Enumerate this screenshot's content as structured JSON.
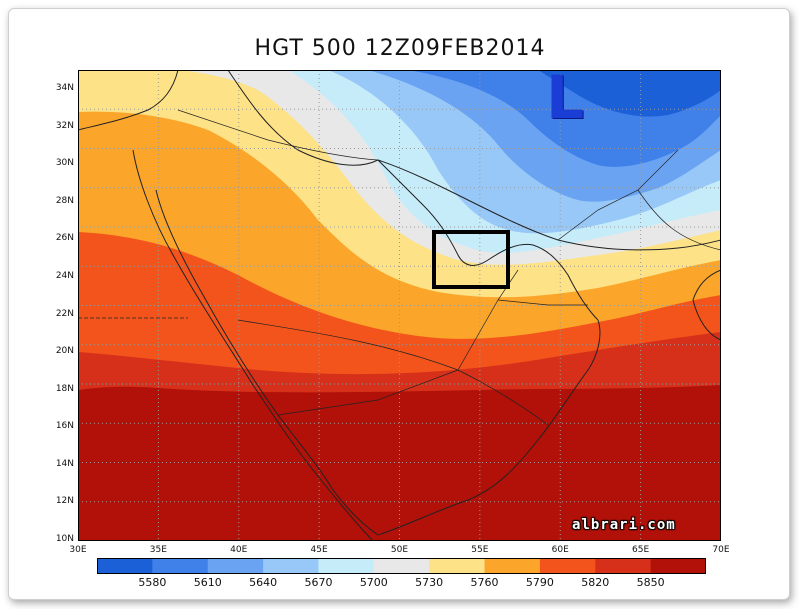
{
  "title": "HGT 500 12Z09FEB2014",
  "low_marker": "L",
  "watermark": "albrari.com",
  "lat_labels": [
    "34N",
    "32N",
    "30N",
    "28N",
    "26N",
    "24N",
    "22N",
    "20N",
    "18N",
    "16N",
    "14N",
    "12N",
    "10N"
  ],
  "lon_labels": [
    "30E",
    "35E",
    "40E",
    "45E",
    "50E",
    "55E",
    "60E",
    "65E",
    "70E"
  ],
  "colorbar": {
    "labels": [
      "5580",
      "5610",
      "5640",
      "5670",
      "5700",
      "5730",
      "5760",
      "5790",
      "5820",
      "5850"
    ],
    "colors": [
      "#1c60d8",
      "#3f80e9",
      "#6aa3f2",
      "#98c8f7",
      "#c6ecfa",
      "#e8e8e8",
      "#fde287",
      "#fba62a",
      "#f3541c",
      "#d7301a",
      "#b11109"
    ]
  },
  "colors": {
    "c5580": "#1c60d8",
    "c5610": "#3f80e9",
    "c5640": "#6aa3f2",
    "c5670": "#98c8f7",
    "c5700": "#c6ecfa",
    "c5730": "#e8e8e8",
    "c5760": "#fde287",
    "c5790": "#fba62a",
    "c5820": "#f3541c",
    "c5850": "#d7301a",
    "c5880": "#b11109"
  }
}
